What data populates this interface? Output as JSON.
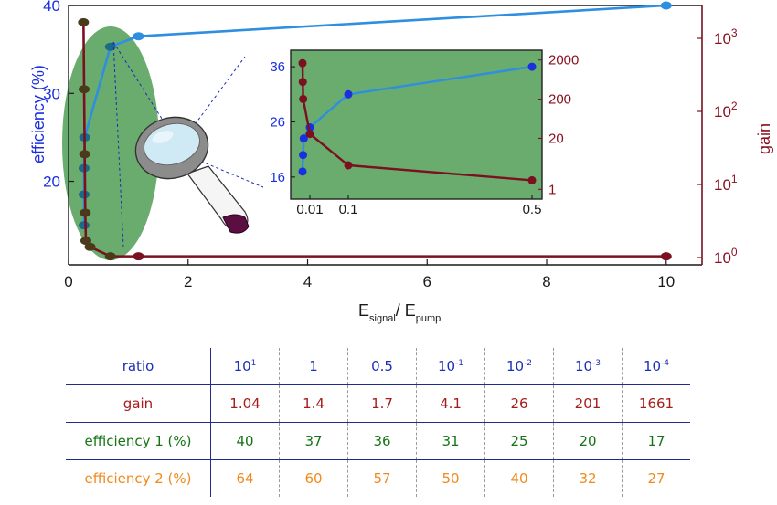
{
  "chart_data": [
    {
      "type": "line",
      "xlabel_main": "E",
      "xlabel_sub1": "signal",
      "xlabel_mid": "/ E",
      "xlabel_sub2": "pump",
      "ylabel_left": "efficiency (%)",
      "ylabel_right": "gain",
      "x_ticks": [
        "0",
        "2",
        "4",
        "6",
        "8",
        "10"
      ],
      "y_left_ticks": [
        "20",
        "30",
        "40"
      ],
      "y_right_ticks": [
        {
          "base": "10",
          "exp": "0"
        },
        {
          "base": "10",
          "exp": "1"
        },
        {
          "base": "10",
          "exp": "2"
        },
        {
          "base": "10",
          "exp": "3"
        }
      ],
      "xlim": [
        0,
        10.6
      ],
      "ylim_left": [
        10.5,
        40
      ],
      "ylim_right_log10": [
        -0.1,
        3.45
      ],
      "series": [
        {
          "color": "#2e8ee0",
          "x": [
            0.26,
            0.26,
            0.26,
            0.27,
            0.7,
            1.17,
            10.0
          ],
          "y": [
            15,
            18.5,
            21.5,
            25,
            35.3,
            36.5,
            40
          ]
        },
        {
          "color": "#7a1020",
          "x": [
            0.25,
            0.26,
            0.27,
            0.28,
            0.29,
            0.36,
            0.7,
            1.17,
            10.0
          ],
          "y_gain": [
            1661,
            201,
            26,
            4.1,
            1.7,
            1.4,
            1.04,
            1.04,
            1.04
          ]
        }
      ],
      "highlight_color": "#6aab6e"
    },
    {
      "type": "line",
      "role": "inset",
      "x_ticks": [
        "0.01",
        "0.1",
        "0.5"
      ],
      "y_left_ticks": [
        "16",
        "26",
        "36"
      ],
      "y_right_ticks": [
        "1",
        "20",
        "200",
        "2000"
      ],
      "xlim": [
        0,
        0.52
      ],
      "ylim_left": [
        12,
        39
      ],
      "ylim_right_log10": [
        -0.25,
        3.55
      ],
      "background": "#6aab6e",
      "series": [
        {
          "color": "#2e8ee0",
          "x": [
            0.001,
            0.001,
            0.001,
            0.01,
            0.1,
            0.5
          ],
          "y": [
            17,
            20,
            23,
            25,
            31,
            36
          ]
        },
        {
          "color": "#7a1020",
          "x": [
            0.001,
            0.001,
            0.001,
            0.01,
            0.1,
            0.5
          ],
          "y_gain": [
            1661,
            550,
            201,
            26,
            4.1,
            1.7
          ]
        }
      ]
    }
  ],
  "table": {
    "rows": [
      {
        "key": "ratio",
        "label": "ratio",
        "cells": [
          {
            "base": "10",
            "exp": "1"
          },
          {
            "base": "1",
            "exp": ""
          },
          {
            "base": "0.5",
            "exp": ""
          },
          {
            "base": "10",
            "exp": "-1"
          },
          {
            "base": "10",
            "exp": "-2"
          },
          {
            "base": "10",
            "exp": "-3"
          },
          {
            "base": "10",
            "exp": "-4"
          }
        ]
      },
      {
        "key": "gain",
        "label": "gain",
        "cells": [
          {
            "base": "1.04"
          },
          {
            "base": "1.4"
          },
          {
            "base": "1.7"
          },
          {
            "base": "4.1"
          },
          {
            "base": "26"
          },
          {
            "base": "201"
          },
          {
            "base": "1661"
          }
        ]
      },
      {
        "key": "eff1",
        "label": "efficiency 1 (%)",
        "cells": [
          {
            "base": "40"
          },
          {
            "base": "37"
          },
          {
            "base": "36"
          },
          {
            "base": "31"
          },
          {
            "base": "25"
          },
          {
            "base": "20"
          },
          {
            "base": "17"
          }
        ]
      },
      {
        "key": "eff2",
        "label": "efficiency 2 (%)",
        "cells": [
          {
            "base": "64"
          },
          {
            "base": "60"
          },
          {
            "base": "57"
          },
          {
            "base": "50"
          },
          {
            "base": "40"
          },
          {
            "base": "32"
          },
          {
            "base": "27"
          }
        ]
      }
    ]
  },
  "icons": {
    "magnifier": "magnifying-glass-icon"
  }
}
